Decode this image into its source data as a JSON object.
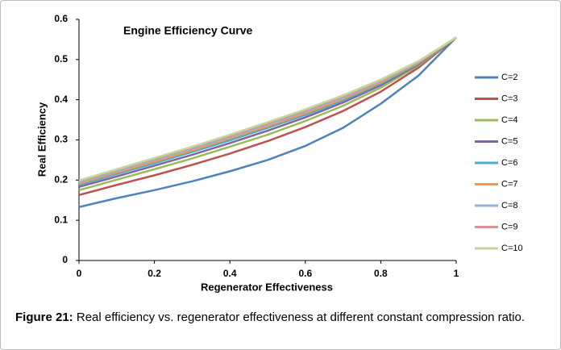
{
  "chart_data": {
    "type": "line",
    "title": "Engine Efficiency Curve",
    "x_label": "Regenerator Effectiveness",
    "y_label": "Real Efficiency",
    "x": [
      0,
      0.1,
      0.2,
      0.3,
      0.4,
      0.5,
      0.6,
      0.7,
      0.8,
      0.9,
      1
    ],
    "xlim": [
      0,
      1
    ],
    "xticks": [
      0,
      0.2,
      0.4,
      0.6,
      0.8,
      1
    ],
    "ylim": [
      0,
      0.6
    ],
    "yticks": [
      0,
      0.1,
      0.2,
      0.3,
      0.4,
      0.5,
      0.6
    ],
    "grid": false,
    "legend": "right",
    "series": [
      {
        "name": "C=2",
        "color": "#4f81bd",
        "values": [
          0.133,
          0.155,
          0.175,
          0.197,
          0.222,
          0.25,
          0.285,
          0.33,
          0.39,
          0.46,
          0.555
        ]
      },
      {
        "name": "C=3",
        "color": "#c0504d",
        "values": [
          0.163,
          0.188,
          0.212,
          0.238,
          0.266,
          0.297,
          0.332,
          0.372,
          0.42,
          0.48,
          0.555
        ]
      },
      {
        "name": "C=4",
        "color": "#9bbb59",
        "values": [
          0.175,
          0.201,
          0.227,
          0.254,
          0.283,
          0.313,
          0.347,
          0.385,
          0.43,
          0.485,
          0.555
        ]
      },
      {
        "name": "C=5",
        "color": "#8064a2",
        "values": [
          0.183,
          0.209,
          0.236,
          0.263,
          0.292,
          0.323,
          0.356,
          0.393,
          0.436,
          0.488,
          0.555
        ]
      },
      {
        "name": "C=6",
        "color": "#4bacc6",
        "values": [
          0.188,
          0.215,
          0.242,
          0.27,
          0.299,
          0.33,
          0.362,
          0.398,
          0.44,
          0.49,
          0.555
        ]
      },
      {
        "name": "C=7",
        "color": "#f79646",
        "values": [
          0.191,
          0.219,
          0.246,
          0.274,
          0.304,
          0.334,
          0.366,
          0.402,
          0.443,
          0.492,
          0.555
        ]
      },
      {
        "name": "C=8",
        "color": "#95b3d7",
        "values": [
          0.194,
          0.222,
          0.25,
          0.278,
          0.307,
          0.338,
          0.37,
          0.405,
          0.446,
          0.494,
          0.555
        ]
      },
      {
        "name": "C=9",
        "color": "#d99694",
        "values": [
          0.197,
          0.225,
          0.253,
          0.281,
          0.31,
          0.341,
          0.373,
          0.408,
          0.448,
          0.495,
          0.555
        ]
      },
      {
        "name": "C=10",
        "color": "#c3d69b",
        "values": [
          0.199,
          0.227,
          0.255,
          0.283,
          0.313,
          0.344,
          0.376,
          0.411,
          0.45,
          0.496,
          0.555
        ]
      }
    ]
  },
  "caption": {
    "label": "Figure 21:",
    "text": "Real efficiency vs. regenerator effectiveness at different constant compression ratio."
  }
}
